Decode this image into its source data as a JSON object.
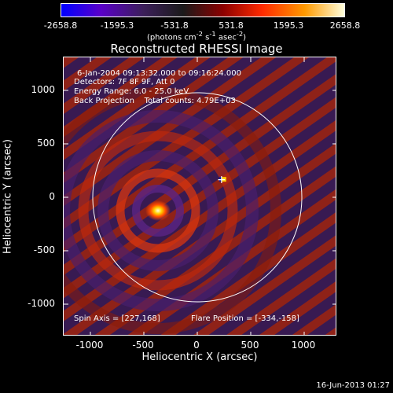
{
  "colorbar": {
    "ticks": [
      "-2658.8",
      "-1595.3",
      "-531.8",
      "531.8",
      "1595.3",
      "2658.8"
    ],
    "unit_prefix": "(photons cm",
    "unit_exp1": "-2",
    "unit_mid": " s",
    "unit_exp2": "-1",
    "unit_mid2": " asec",
    "unit_exp3": "-2",
    "unit_suffix": ")",
    "gradient": [
      "#0000ff",
      "#5a00c8",
      "#3c1f5a",
      "#1a1a1a",
      "#8b0000",
      "#ff2a00",
      "#ff9a00",
      "#ffffdd"
    ]
  },
  "plot": {
    "title": "Reconstructed RHESSI Image",
    "info_lines": [
      "6-Jan-2004 09:13:32.000 to 09:16:24.000",
      "Detectors: 7F 8F 9F, Att 0",
      "Energy Range: 6.0 - 25.0 keV",
      "Back Projection    Total counts: 4.79E+03"
    ],
    "spin_axis": "Spin Axis = [227,168]",
    "flare_position": "Flare Position = [-334,-158]",
    "xlabel": "Heliocentric X (arcsec)",
    "ylabel": "Heliocentric Y (arcsec)",
    "x_ticks": [
      "-1000",
      "-500",
      "0",
      "500",
      "1000"
    ],
    "y_ticks": [
      "1000",
      "500",
      "0",
      "-500",
      "-1000"
    ],
    "marker_symbol": "+"
  },
  "footer": {
    "timestamp": "16-Jun-2013 01:27"
  }
}
